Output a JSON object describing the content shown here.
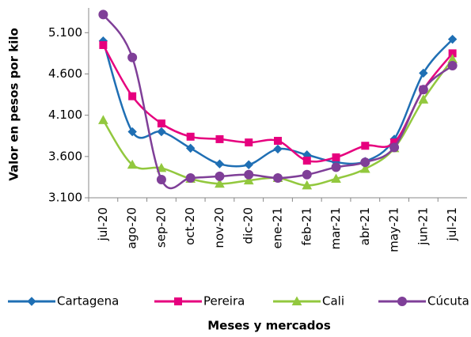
{
  "chart_data": {
    "type": "line",
    "y_label": "Valor en pesos por kilo",
    "x_label": "Meses  y mercados",
    "categories": [
      "jul-20",
      "ago-20",
      "sep-20",
      "oct-20",
      "nov-20",
      "dic-20",
      "ene-21",
      "feb-21",
      "mar-21",
      "abr-21",
      "may-21",
      "jun-21",
      "jul-21"
    ],
    "series": [
      {
        "name": "Cartagena",
        "color": "#1f6fb4",
        "marker": "diamond",
        "values": [
          5000,
          3900,
          3900,
          3700,
          3510,
          3500,
          3690,
          3620,
          3530,
          3540,
          3810,
          4610,
          5020
        ]
      },
      {
        "name": "Pereira",
        "color": "#e6007e",
        "marker": "square",
        "values": [
          4950,
          4330,
          4000,
          3840,
          3810,
          3770,
          3790,
          3550,
          3590,
          3730,
          3770,
          4410,
          4850
        ]
      },
      {
        "name": "Cali",
        "color": "#92c83e",
        "marker": "triangle",
        "values": [
          4040,
          3500,
          3460,
          3330,
          3270,
          3310,
          3340,
          3250,
          3330,
          3450,
          3700,
          4290,
          4780
        ]
      },
      {
        "name": "Cúcuta",
        "color": "#7f3f98",
        "marker": "circle",
        "values": [
          5320,
          4800,
          3320,
          3340,
          3360,
          3380,
          3340,
          3380,
          3470,
          3530,
          3710,
          4410,
          4700
        ]
      }
    ],
    "ylim": [
      3100,
      5400
    ],
    "yticks": [
      {
        "value": 3100,
        "label": "3.100"
      },
      {
        "value": 3600,
        "label": "3.600"
      },
      {
        "value": 4100,
        "label": "4.100"
      },
      {
        "value": 4600,
        "label": "4.600"
      },
      {
        "value": 5100,
        "label": "5.100"
      }
    ],
    "grid": false,
    "legend": "bottom"
  }
}
